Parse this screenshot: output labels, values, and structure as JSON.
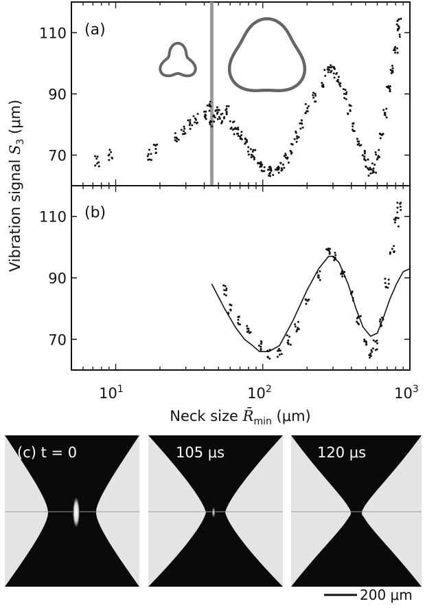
{
  "figure": {
    "y_axis_title_main": "Vibration signal ",
    "y_axis_title_sym": "S",
    "y_axis_title_sub": "3",
    "y_axis_title_unit": " (μm)",
    "x_axis_title_main": "Neck size ",
    "x_axis_title_sym": "R̄",
    "x_axis_title_sub": "min",
    "x_axis_title_unit": " (μm)",
    "x_tick_labels": [
      {
        "base": "10",
        "exp": "1"
      },
      {
        "base": "10",
        "exp": "2"
      },
      {
        "base": "10",
        "exp": "3"
      }
    ],
    "y_tick_labels": [
      "110",
      "90",
      "70"
    ]
  },
  "panel_a": {
    "label": "(a)"
  },
  "panel_b": {
    "label": "(b)"
  },
  "panel_c": {
    "frames": [
      {
        "label": "(c) t = 0"
      },
      {
        "label": "105 μs"
      },
      {
        "label": "120 μs"
      }
    ],
    "scale_bar_label": "200 μm"
  },
  "colors": {
    "points": "#111111",
    "theory_line": "#111111",
    "marker_line": "#9a9a9a",
    "shape_outline": "#666666",
    "photo_background": "#e4e4e4",
    "liquid": "#0a0a0a"
  },
  "chart_data": [
    {
      "panel": "a",
      "type": "scatter",
      "x_scale": "log",
      "xlim": [
        5,
        1000
      ],
      "ylim": [
        60,
        120
      ],
      "yticks": [
        70,
        90,
        110
      ],
      "marker_x": 45,
      "series": [
        {
          "values": [
            [
              7.5,
              68
            ],
            [
              9.2,
              70
            ],
            [
              17,
              70
            ],
            [
              18.5,
              72
            ],
            [
              26,
              76
            ],
            [
              29,
              78
            ],
            [
              32,
              80
            ],
            [
              35,
              82
            ],
            [
              40,
              83
            ],
            [
              43,
              86
            ],
            [
              45,
              81
            ],
            [
              48,
              84
            ],
            [
              50,
              83
            ],
            [
              53,
              82
            ],
            [
              57,
              85
            ],
            [
              62,
              80
            ],
            [
              66,
              78
            ],
            [
              70,
              76
            ],
            [
              76,
              74
            ],
            [
              82,
              71
            ],
            [
              88,
              70
            ],
            [
              95,
              67
            ],
            [
              100,
              66
            ],
            [
              110,
              65
            ],
            [
              115,
              64
            ],
            [
              125,
              65
            ],
            [
              135,
              66
            ],
            [
              145,
              69
            ],
            [
              155,
              72
            ],
            [
              170,
              76
            ],
            [
              185,
              80
            ],
            [
              200,
              85
            ],
            [
              225,
              89
            ],
            [
              250,
              94
            ],
            [
              270,
              97
            ],
            [
              290,
              98
            ],
            [
              310,
              97
            ],
            [
              330,
              94
            ],
            [
              360,
              90
            ],
            [
              390,
              85
            ],
            [
              420,
              79
            ],
            [
              450,
              74
            ],
            [
              480,
              70
            ],
            [
              510,
              67
            ],
            [
              540,
              65
            ],
            [
              570,
              66
            ],
            [
              600,
              70
            ],
            [
              640,
              77
            ],
            [
              680,
              84
            ],
            [
              720,
              91
            ],
            [
              760,
              98
            ],
            [
              800,
              105
            ],
            [
              830,
              110
            ],
            [
              845,
              113
            ]
          ]
        }
      ]
    },
    {
      "panel": "b",
      "type": "line",
      "x_scale": "log",
      "xlim": [
        5,
        1000
      ],
      "ylim": [
        60,
        120
      ],
      "yticks": [
        70,
        90,
        110
      ],
      "series": [
        {
          "values": [
            [
              45,
              88
            ],
            [
              55,
              80
            ],
            [
              65,
              74
            ],
            [
              75,
              70
            ],
            [
              85,
              68
            ],
            [
              95,
              66
            ],
            [
              110,
              66
            ],
            [
              130,
              68
            ],
            [
              160,
              76
            ],
            [
              200,
              86
            ],
            [
              240,
              93
            ],
            [
              280,
              97
            ],
            [
              300,
              97
            ],
            [
              330,
              95
            ],
            [
              380,
              88
            ],
            [
              430,
              80
            ],
            [
              480,
              74
            ],
            [
              540,
              71
            ],
            [
              600,
              72
            ],
            [
              660,
              77
            ],
            [
              730,
              83
            ],
            [
              810,
              88
            ],
            [
              900,
              92
            ],
            [
              1000,
              93
            ]
          ]
        },
        {
          "values": [
            [
              55,
              86
            ],
            [
              60,
              80
            ],
            [
              70,
              76
            ],
            [
              80,
              73
            ],
            [
              95,
              68
            ],
            [
              110,
              65
            ],
            [
              130,
              66
            ],
            [
              150,
              70
            ],
            [
              170,
              74
            ],
            [
              200,
              83
            ],
            [
              240,
              91
            ],
            [
              280,
              98
            ],
            [
              310,
              97
            ],
            [
              350,
              92
            ],
            [
              400,
              84
            ],
            [
              450,
              76
            ],
            [
              500,
              69
            ],
            [
              540,
              65
            ],
            [
              580,
              68
            ],
            [
              640,
              76
            ],
            [
              700,
              88
            ],
            [
              760,
              99
            ],
            [
              810,
              108
            ],
            [
              845,
              113
            ]
          ]
        }
      ]
    }
  ]
}
